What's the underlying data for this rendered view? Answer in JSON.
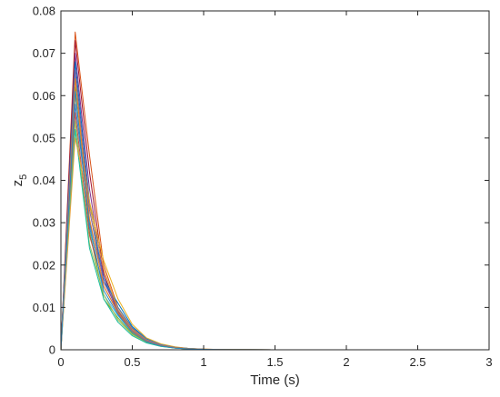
{
  "chart_data": {
    "type": "line",
    "xlabel": "Time (s)",
    "ylabel_main": "z",
    "ylabel_sub": "5",
    "xlim": [
      0,
      3
    ],
    "ylim": [
      0,
      0.08
    ],
    "xticks": [
      0,
      0.5,
      1,
      1.5,
      2,
      2.5,
      3
    ],
    "xtick_labels": [
      "0",
      "0.5",
      "1",
      "1.5",
      "2",
      "2.5",
      "3"
    ],
    "yticks": [
      0,
      0.01,
      0.02,
      0.03,
      0.04,
      0.05,
      0.06,
      0.07,
      0.08
    ],
    "ytick_labels": [
      "0",
      "0.01",
      "0.02",
      "0.03",
      "0.04",
      "0.05",
      "0.06",
      "0.07",
      "0.08"
    ],
    "grid": false,
    "x": [
      0,
      0.1,
      0.2,
      0.3,
      0.4,
      0.5,
      0.6,
      0.7,
      0.8,
      0.9,
      1.0,
      1.1,
      1.2,
      1.5,
      2.0,
      2.5,
      3.0
    ],
    "series": [
      {
        "color": "#d95319",
        "values": [
          0,
          0.075,
          0.046,
          0.02,
          0.01,
          0.005,
          0.0024,
          0.0012,
          0.0006,
          0.0003,
          0.00015,
          7e-05,
          3e-05,
          0,
          0,
          0,
          0
        ]
      },
      {
        "color": "#a2142f",
        "values": [
          0,
          0.073,
          0.042,
          0.018,
          0.009,
          0.0045,
          0.0022,
          0.0011,
          0.0005,
          0.00025,
          0.00012,
          6e-05,
          3e-05,
          0,
          0,
          0,
          0
        ]
      },
      {
        "color": "#7e2f8e",
        "values": [
          0,
          0.07,
          0.038,
          0.017,
          0.0085,
          0.0042,
          0.002,
          0.001,
          0.0005,
          0.00024,
          0.00011,
          5e-05,
          2e-05,
          0,
          0,
          0,
          0
        ]
      },
      {
        "color": "#0072bd",
        "values": [
          0,
          0.068,
          0.035,
          0.016,
          0.011,
          0.0055,
          0.0026,
          0.0013,
          0.0006,
          0.0003,
          0.00014,
          6e-05,
          3e-05,
          0,
          0,
          0,
          0
        ]
      },
      {
        "color": "#4dbeee",
        "values": [
          0,
          0.065,
          0.03,
          0.013,
          0.008,
          0.004,
          0.0019,
          0.0009,
          0.0004,
          0.0002,
          0.0001,
          5e-05,
          2e-05,
          0,
          0,
          0,
          0
        ]
      },
      {
        "color": "#77ac30",
        "values": [
          0,
          0.062,
          0.028,
          0.012,
          0.0075,
          0.0038,
          0.0018,
          0.0009,
          0.0004,
          0.0002,
          0.0001,
          5e-05,
          2e-05,
          0,
          0,
          0,
          0
        ]
      },
      {
        "color": "#edb120",
        "values": [
          0,
          0.06,
          0.035,
          0.021,
          0.012,
          0.006,
          0.0028,
          0.0014,
          0.0007,
          0.0003,
          0.00015,
          7e-05,
          3e-05,
          0,
          0,
          0,
          0
        ]
      },
      {
        "color": "#3b7bbf",
        "values": [
          0,
          0.058,
          0.03,
          0.017,
          0.01,
          0.0052,
          0.0025,
          0.0012,
          0.0006,
          0.0003,
          0.00013,
          6e-05,
          3e-05,
          0,
          0,
          0,
          0
        ]
      },
      {
        "color": "#c0504d",
        "values": [
          0,
          0.056,
          0.027,
          0.015,
          0.0088,
          0.0044,
          0.0021,
          0.001,
          0.0005,
          0.00024,
          0.00011,
          5e-05,
          2e-05,
          0,
          0,
          0,
          0
        ]
      },
      {
        "color": "#9bbb59",
        "values": [
          0,
          0.054,
          0.025,
          0.013,
          0.007,
          0.0036,
          0.0017,
          0.0008,
          0.0004,
          0.0002,
          0.0001,
          4e-05,
          2e-05,
          0,
          0,
          0,
          0
        ]
      },
      {
        "color": "#1abc9c",
        "values": [
          0,
          0.052,
          0.024,
          0.012,
          0.0065,
          0.0033,
          0.0016,
          0.0008,
          0.0004,
          0.0002,
          9e-05,
          4e-05,
          2e-05,
          0,
          0,
          0,
          0
        ]
      },
      {
        "color": "#e6a23c",
        "values": [
          0,
          0.05,
          0.034,
          0.019,
          0.0095,
          0.0048,
          0.0023,
          0.0011,
          0.0005,
          0.00025,
          0.00012,
          5e-05,
          2e-05,
          0,
          0,
          0,
          0
        ]
      },
      {
        "color": "#8064a2",
        "values": [
          0,
          0.066,
          0.033,
          0.016,
          0.0092,
          0.0046,
          0.0022,
          0.0011,
          0.0005,
          0.00025,
          0.00012,
          5e-05,
          2e-05,
          0,
          0,
          0,
          0
        ]
      },
      {
        "color": "#e67e22",
        "values": [
          0,
          0.064,
          0.031,
          0.015,
          0.0087,
          0.0043,
          0.002,
          0.001,
          0.0005,
          0.00024,
          0.00011,
          5e-05,
          2e-05,
          0,
          0,
          0,
          0
        ]
      },
      {
        "color": "#2e86c1",
        "values": [
          0,
          0.061,
          0.029,
          0.014,
          0.0083,
          0.0041,
          0.0019,
          0.0009,
          0.0004,
          0.0002,
          0.0001,
          5e-05,
          2e-05,
          0,
          0,
          0,
          0
        ]
      }
    ]
  }
}
